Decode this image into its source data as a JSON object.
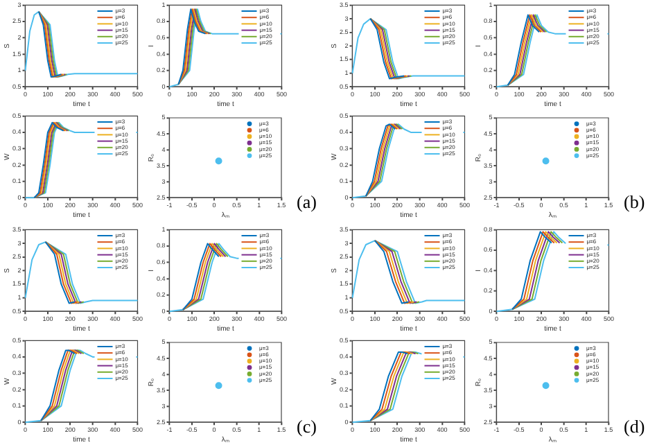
{
  "chart_data": [
    {
      "type": "line",
      "xlabel": "time t",
      "ylabel": "S",
      "xlim": [
        0,
        500
      ],
      "xticks": [
        0,
        100,
        200,
        300,
        400,
        500
      ],
      "ylim": [
        0.5,
        3
      ],
      "yticks": [
        0.5,
        1,
        1.5,
        2,
        2.5,
        3
      ],
      "legend": "top right",
      "series": [
        {
          "name": "μ=3",
          "color": "#0072bd",
          "x": [
            60,
            80,
            100,
            115,
            130,
            160
          ],
          "values": [
            2.8,
            2.4,
            1.3,
            0.8,
            0.82,
            0.88
          ]
        },
        {
          "name": "μ=6",
          "color": "#d95319",
          "x": [
            60,
            86,
            106,
            121,
            136,
            166
          ],
          "values": [
            2.8,
            2.4,
            1.3,
            0.8,
            0.82,
            0.88
          ]
        },
        {
          "name": "μ=10",
          "color": "#edb120",
          "x": [
            60,
            92,
            112,
            127,
            142,
            172
          ],
          "values": [
            2.8,
            2.4,
            1.3,
            0.8,
            0.82,
            0.88
          ]
        },
        {
          "name": "μ=15",
          "color": "#7e2f8e",
          "x": [
            60,
            98,
            118,
            133,
            148,
            178
          ],
          "values": [
            2.8,
            2.4,
            1.3,
            0.8,
            0.82,
            0.88
          ]
        },
        {
          "name": "μ=20",
          "color": "#77ac30",
          "x": [
            60,
            104,
            124,
            139,
            154,
            184
          ],
          "values": [
            2.8,
            2.4,
            1.3,
            0.8,
            0.82,
            0.88
          ]
        },
        {
          "name": "μ=25",
          "color": "#4dbeee",
          "x": [
            0,
            20,
            40,
            60,
            110,
            130,
            145,
            160,
            190,
            220,
            500
          ],
          "values": [
            1,
            2.2,
            2.7,
            2.8,
            2.4,
            1.3,
            0.8,
            0.82,
            0.88,
            0.9,
            0.9
          ]
        }
      ]
    },
    {
      "type": "line",
      "xlabel": "time t",
      "ylabel": "I",
      "xlim": [
        0,
        500
      ],
      "xticks": [
        0,
        100,
        200,
        300,
        400,
        500
      ],
      "ylim": [
        0,
        1
      ],
      "yticks": [
        0,
        0.2,
        0.4,
        0.6,
        0.8,
        1
      ],
      "legend": "top right",
      "series": [
        {
          "name": "μ=3",
          "color": "#0072bd",
          "x": [
            40,
            60,
            80,
            95,
            110,
            130,
            160
          ],
          "values": [
            0.03,
            0.2,
            0.7,
            0.95,
            0.8,
            0.68,
            0.65
          ]
        },
        {
          "name": "μ=6",
          "color": "#d95319",
          "x": [
            40,
            66,
            86,
            101,
            116,
            136,
            166
          ],
          "values": [
            0.03,
            0.2,
            0.7,
            0.95,
            0.8,
            0.68,
            0.65
          ]
        },
        {
          "name": "μ=10",
          "color": "#edb120",
          "x": [
            40,
            72,
            92,
            107,
            122,
            142,
            172
          ],
          "values": [
            0.03,
            0.2,
            0.7,
            0.95,
            0.8,
            0.68,
            0.65
          ]
        },
        {
          "name": "μ=15",
          "color": "#7e2f8e",
          "x": [
            40,
            78,
            98,
            113,
            128,
            148,
            178
          ],
          "values": [
            0.03,
            0.2,
            0.7,
            0.95,
            0.8,
            0.68,
            0.65
          ]
        },
        {
          "name": "μ=20",
          "color": "#77ac30",
          "x": [
            40,
            84,
            104,
            119,
            134,
            154,
            184
          ],
          "values": [
            0.03,
            0.2,
            0.7,
            0.95,
            0.8,
            0.68,
            0.65
          ]
        },
        {
          "name": "μ=25",
          "color": "#4dbeee",
          "x": [
            0,
            40,
            90,
            110,
            125,
            140,
            160,
            190,
            220,
            500
          ],
          "values": [
            0,
            0.03,
            0.2,
            0.7,
            0.95,
            0.8,
            0.68,
            0.65,
            0.65,
            0.65
          ]
        }
      ]
    },
    {
      "type": "line",
      "xlabel": "time t",
      "ylabel": "W",
      "xlim": [
        0,
        500
      ],
      "xticks": [
        0,
        100,
        200,
        300,
        400,
        500
      ],
      "ylim": [
        0,
        0.5
      ],
      "yticks": [
        0,
        0.1,
        0.2,
        0.3,
        0.4,
        0.5
      ],
      "legend": "top right",
      "series": [
        {
          "name": "μ=3",
          "color": "#0072bd",
          "x": [
            40,
            60,
            80,
            100,
            120,
            140,
            170
          ],
          "values": [
            0,
            0.03,
            0.2,
            0.4,
            0.46,
            0.43,
            0.41
          ]
        },
        {
          "name": "μ=6",
          "color": "#d95319",
          "x": [
            40,
            66,
            86,
            106,
            126,
            146,
            176
          ],
          "values": [
            0,
            0.03,
            0.2,
            0.4,
            0.46,
            0.43,
            0.41
          ]
        },
        {
          "name": "μ=10",
          "color": "#edb120",
          "x": [
            40,
            72,
            92,
            112,
            132,
            152,
            182
          ],
          "values": [
            0,
            0.03,
            0.2,
            0.4,
            0.46,
            0.43,
            0.41
          ]
        },
        {
          "name": "μ=15",
          "color": "#7e2f8e",
          "x": [
            40,
            78,
            98,
            118,
            138,
            158,
            188
          ],
          "values": [
            0,
            0.03,
            0.2,
            0.4,
            0.46,
            0.43,
            0.41
          ]
        },
        {
          "name": "μ=20",
          "color": "#77ac30",
          "x": [
            40,
            84,
            104,
            124,
            144,
            164,
            194
          ],
          "values": [
            0,
            0.03,
            0.2,
            0.4,
            0.46,
            0.43,
            0.41
          ]
        },
        {
          "name": "μ=25",
          "color": "#4dbeee",
          "x": [
            0,
            40,
            90,
            110,
            130,
            150,
            170,
            200,
            220,
            500
          ],
          "values": [
            0,
            0,
            0.03,
            0.2,
            0.4,
            0.46,
            0.43,
            0.41,
            0.4,
            0.4
          ]
        }
      ]
    },
    {
      "type": "scatter",
      "xlabel": "λₘ",
      "ylabel": "R₀",
      "xlim": [
        -1,
        1.5
      ],
      "xticks": [
        -1,
        -0.5,
        0,
        0.5,
        1,
        1.5
      ],
      "ylim": [
        2.5,
        5
      ],
      "yticks": [
        2.5,
        3,
        3.5,
        4,
        4.5,
        5
      ],
      "legend": "top right",
      "marker": "circle",
      "annotations": [
        "(a)"
      ],
      "series": [
        {
          "name": "μ=3",
          "color": "#0072bd",
          "x": [
            null
          ],
          "values": [
            null
          ]
        },
        {
          "name": "μ=6",
          "color": "#d95319",
          "x": [
            null
          ],
          "values": [
            null
          ]
        },
        {
          "name": "μ=10",
          "color": "#edb120",
          "x": [
            null
          ],
          "values": [
            null
          ]
        },
        {
          "name": "μ=15",
          "color": "#7e2f8e",
          "x": [
            null
          ],
          "values": [
            null
          ]
        },
        {
          "name": "μ=20",
          "color": "#77ac30",
          "x": [
            null
          ],
          "values": [
            null
          ]
        },
        {
          "name": "μ=25",
          "color": "#4dbeee",
          "x": [
            0.1
          ],
          "values": [
            3.65
          ]
        }
      ]
    },
    {
      "type": "line",
      "xlabel": "time t",
      "ylabel": "S",
      "xlim": [
        0,
        500
      ],
      "xticks": [
        0,
        100,
        200,
        300,
        400,
        500
      ],
      "ylim": [
        0.5,
        3.5
      ],
      "yticks": [
        0.5,
        1,
        1.5,
        2,
        2.5,
        3,
        3.5
      ],
      "legend": "top right",
      "series": [
        {
          "name": "μ=3",
          "color": "#0072bd",
          "x": [
            80,
            110,
            140,
            165,
            190,
            230
          ],
          "values": [
            3,
            2.6,
            1.4,
            0.8,
            0.85,
            0.9
          ]
        },
        {
          "name": "μ=6",
          "color": "#d95319",
          "x": [
            80,
            118,
            148,
            173,
            198,
            238
          ],
          "values": [
            3,
            2.6,
            1.4,
            0.8,
            0.85,
            0.9
          ]
        },
        {
          "name": "μ=10",
          "color": "#edb120",
          "x": [
            80,
            126,
            156,
            181,
            206,
            246
          ],
          "values": [
            3,
            2.6,
            1.4,
            0.8,
            0.85,
            0.9
          ]
        },
        {
          "name": "μ=15",
          "color": "#7e2f8e",
          "x": [
            80,
            134,
            164,
            189,
            214,
            254
          ],
          "values": [
            3,
            2.6,
            1.4,
            0.8,
            0.85,
            0.9
          ]
        },
        {
          "name": "μ=20",
          "color": "#77ac30",
          "x": [
            80,
            142,
            172,
            197,
            222,
            262
          ],
          "values": [
            3,
            2.6,
            1.4,
            0.8,
            0.85,
            0.9
          ]
        },
        {
          "name": "μ=25",
          "color": "#4dbeee",
          "x": [
            0,
            25,
            50,
            80,
            150,
            180,
            205,
            230,
            270,
            300,
            500
          ],
          "values": [
            1,
            2.3,
            2.8,
            3,
            2.6,
            1.4,
            0.8,
            0.85,
            0.9,
            0.9,
            0.9
          ]
        }
      ]
    },
    {
      "type": "line",
      "xlabel": "time t",
      "ylabel": "I",
      "xlim": [
        0,
        500
      ],
      "xticks": [
        0,
        100,
        200,
        300,
        400,
        500
      ],
      "ylim": [
        0,
        1
      ],
      "yticks": [
        0,
        0.2,
        0.4,
        0.6,
        0.8,
        1
      ],
      "legend": "top right",
      "series": [
        {
          "name": "μ=3",
          "color": "#0072bd",
          "x": [
            50,
            80,
            110,
            140,
            160,
            190
          ],
          "values": [
            0.02,
            0.15,
            0.55,
            0.88,
            0.75,
            0.67
          ]
        },
        {
          "name": "μ=6",
          "color": "#d95319",
          "x": [
            50,
            88,
            118,
            148,
            168,
            198
          ],
          "values": [
            0.02,
            0.15,
            0.55,
            0.88,
            0.75,
            0.67
          ]
        },
        {
          "name": "μ=10",
          "color": "#edb120",
          "x": [
            50,
            96,
            126,
            156,
            176,
            206
          ],
          "values": [
            0.02,
            0.15,
            0.55,
            0.88,
            0.75,
            0.67
          ]
        },
        {
          "name": "μ=15",
          "color": "#7e2f8e",
          "x": [
            50,
            104,
            134,
            164,
            184,
            214
          ],
          "values": [
            0.02,
            0.15,
            0.55,
            0.88,
            0.75,
            0.67
          ]
        },
        {
          "name": "μ=20",
          "color": "#77ac30",
          "x": [
            50,
            112,
            142,
            172,
            192,
            222
          ],
          "values": [
            0.02,
            0.15,
            0.55,
            0.88,
            0.75,
            0.67
          ]
        },
        {
          "name": "μ=25",
          "color": "#4dbeee",
          "x": [
            0,
            50,
            120,
            150,
            180,
            200,
            230,
            260,
            500
          ],
          "values": [
            0,
            0.02,
            0.15,
            0.55,
            0.88,
            0.75,
            0.67,
            0.65,
            0.65
          ]
        }
      ]
    },
    {
      "type": "line",
      "xlabel": "time t",
      "ylabel": "W",
      "xlim": [
        0,
        500
      ],
      "xticks": [
        0,
        100,
        200,
        300,
        400,
        500
      ],
      "ylim": [
        0,
        0.5
      ],
      "yticks": [
        0,
        0.1,
        0.2,
        0.3,
        0.4,
        0.5
      ],
      "legend": "top right",
      "series": [
        {
          "name": "μ=3",
          "color": "#0072bd",
          "x": [
            60,
            90,
            120,
            150,
            165,
            190
          ],
          "values": [
            0.01,
            0.1,
            0.3,
            0.44,
            0.45,
            0.42
          ]
        },
        {
          "name": "μ=6",
          "color": "#d95319",
          "x": [
            60,
            98,
            128,
            158,
            173,
            198
          ],
          "values": [
            0.01,
            0.1,
            0.3,
            0.44,
            0.45,
            0.42
          ]
        },
        {
          "name": "μ=10",
          "color": "#edb120",
          "x": [
            60,
            106,
            136,
            166,
            181,
            206
          ],
          "values": [
            0.01,
            0.1,
            0.3,
            0.44,
            0.45,
            0.42
          ]
        },
        {
          "name": "μ=15",
          "color": "#7e2f8e",
          "x": [
            60,
            114,
            144,
            174,
            189,
            214
          ],
          "values": [
            0.01,
            0.1,
            0.3,
            0.44,
            0.45,
            0.42
          ]
        },
        {
          "name": "μ=20",
          "color": "#77ac30",
          "x": [
            60,
            122,
            152,
            182,
            197,
            222
          ],
          "values": [
            0.01,
            0.1,
            0.3,
            0.44,
            0.45,
            0.42
          ]
        },
        {
          "name": "μ=25",
          "color": "#4dbeee",
          "x": [
            0,
            60,
            130,
            160,
            190,
            205,
            230,
            260,
            500
          ],
          "values": [
            0,
            0.01,
            0.1,
            0.3,
            0.44,
            0.45,
            0.42,
            0.4,
            0.4
          ]
        }
      ]
    },
    {
      "type": "scatter",
      "xlabel": "λₘ",
      "ylabel": "R₀",
      "xlim": [
        -1,
        1.5
      ],
      "xticks": [
        -1,
        -0.5,
        0,
        0.5,
        1,
        1.5
      ],
      "ylim": [
        2.5,
        5
      ],
      "yticks": [
        2.5,
        3,
        3.5,
        4,
        4.5,
        5
      ],
      "legend": "top right",
      "marker": "circle",
      "annotations": [
        "(b)"
      ],
      "series": [
        {
          "name": "μ=3",
          "color": "#0072bd",
          "x": [
            null
          ],
          "values": [
            null
          ]
        },
        {
          "name": "μ=6",
          "color": "#d95319",
          "x": [
            null
          ],
          "values": [
            null
          ]
        },
        {
          "name": "μ=10",
          "color": "#edb120",
          "x": [
            null
          ],
          "values": [
            null
          ]
        },
        {
          "name": "μ=15",
          "color": "#7e2f8e",
          "x": [
            null
          ],
          "values": [
            null
          ]
        },
        {
          "name": "μ=20",
          "color": "#77ac30",
          "x": [
            null
          ],
          "values": [
            null
          ]
        },
        {
          "name": "μ=25",
          "color": "#4dbeee",
          "x": [
            0.1
          ],
          "values": [
            3.65
          ]
        }
      ]
    },
    {
      "type": "line",
      "xlabel": "time t",
      "ylabel": "S",
      "xlim": [
        0,
        500
      ],
      "xticks": [
        0,
        100,
        200,
        300,
        400,
        500
      ],
      "ylim": [
        0.5,
        3.5
      ],
      "yticks": [
        0.5,
        1,
        1.5,
        2,
        2.5,
        3,
        3.5
      ],
      "legend": "top right",
      "series": [
        {
          "name": "μ=3",
          "color": "#0072bd",
          "x": [
            90,
            130,
            160,
            195,
            220
          ],
          "values": [
            3.05,
            2.6,
            1.5,
            0.8,
            0.85
          ]
        },
        {
          "name": "μ=6",
          "color": "#d95319",
          "x": [
            90,
            140,
            170,
            205,
            230
          ],
          "values": [
            3.05,
            2.6,
            1.5,
            0.8,
            0.85
          ]
        },
        {
          "name": "μ=10",
          "color": "#edb120",
          "x": [
            90,
            150,
            180,
            215,
            240
          ],
          "values": [
            3.05,
            2.6,
            1.5,
            0.8,
            0.85
          ]
        },
        {
          "name": "μ=15",
          "color": "#7e2f8e",
          "x": [
            90,
            160,
            190,
            225,
            250
          ],
          "values": [
            3.05,
            2.6,
            1.5,
            0.8,
            0.85
          ]
        },
        {
          "name": "μ=20",
          "color": "#77ac30",
          "x": [
            90,
            170,
            200,
            235,
            260
          ],
          "values": [
            3.05,
            2.6,
            1.5,
            0.8,
            0.85
          ]
        },
        {
          "name": "μ=25",
          "color": "#4dbeee",
          "x": [
            0,
            30,
            60,
            90,
            180,
            210,
            245,
            270,
            300,
            500
          ],
          "values": [
            1,
            2.4,
            2.95,
            3.05,
            2.6,
            1.5,
            0.8,
            0.85,
            0.9,
            0.9
          ]
        }
      ]
    },
    {
      "type": "line",
      "xlabel": "time t",
      "ylabel": "I",
      "xlim": [
        0,
        500
      ],
      "xticks": [
        0,
        100,
        200,
        300,
        400,
        500
      ],
      "ylim": [
        0,
        1
      ],
      "yticks": [
        0,
        0.2,
        0.4,
        0.6,
        0.8,
        1
      ],
      "legend": "top right",
      "series": [
        {
          "name": "μ=3",
          "color": "#0072bd",
          "x": [
            60,
            100,
            140,
            170,
            190,
            220
          ],
          "values": [
            0.02,
            0.15,
            0.6,
            0.83,
            0.76,
            0.67
          ]
        },
        {
          "name": "μ=6",
          "color": "#d95319",
          "x": [
            60,
            110,
            150,
            180,
            200,
            230
          ],
          "values": [
            0.02,
            0.15,
            0.6,
            0.83,
            0.76,
            0.67
          ]
        },
        {
          "name": "μ=10",
          "color": "#edb120",
          "x": [
            60,
            120,
            160,
            190,
            210,
            240
          ],
          "values": [
            0.02,
            0.15,
            0.6,
            0.83,
            0.76,
            0.67
          ]
        },
        {
          "name": "μ=15",
          "color": "#7e2f8e",
          "x": [
            60,
            130,
            170,
            200,
            220,
            250
          ],
          "values": [
            0.02,
            0.15,
            0.6,
            0.83,
            0.76,
            0.67
          ]
        },
        {
          "name": "μ=20",
          "color": "#77ac30",
          "x": [
            60,
            140,
            180,
            210,
            230,
            260
          ],
          "values": [
            0.02,
            0.15,
            0.6,
            0.83,
            0.76,
            0.67
          ]
        },
        {
          "name": "μ=25",
          "color": "#4dbeee",
          "x": [
            0,
            60,
            150,
            190,
            220,
            240,
            270,
            300,
            500
          ],
          "values": [
            0,
            0.02,
            0.15,
            0.6,
            0.83,
            0.76,
            0.67,
            0.65,
            0.65
          ]
        }
      ]
    },
    {
      "type": "line",
      "xlabel": "time t",
      "ylabel": "W",
      "xlim": [
        0,
        500
      ],
      "xticks": [
        0,
        100,
        200,
        300,
        400,
        500
      ],
      "ylim": [
        0,
        0.5
      ],
      "yticks": [
        0,
        0.1,
        0.2,
        0.3,
        0.4,
        0.5
      ],
      "legend": "top right",
      "series": [
        {
          "name": "μ=3",
          "color": "#0072bd",
          "x": [
            70,
            110,
            150,
            180,
            195,
            220
          ],
          "values": [
            0.01,
            0.1,
            0.32,
            0.44,
            0.44,
            0.42
          ]
        },
        {
          "name": "μ=6",
          "color": "#d95319",
          "x": [
            70,
            120,
            160,
            190,
            205,
            230
          ],
          "values": [
            0.01,
            0.1,
            0.32,
            0.44,
            0.44,
            0.42
          ]
        },
        {
          "name": "μ=10",
          "color": "#edb120",
          "x": [
            70,
            130,
            170,
            200,
            215,
            240
          ],
          "values": [
            0.01,
            0.1,
            0.32,
            0.44,
            0.44,
            0.42
          ]
        },
        {
          "name": "μ=15",
          "color": "#7e2f8e",
          "x": [
            70,
            140,
            180,
            210,
            225,
            250
          ],
          "values": [
            0.01,
            0.1,
            0.32,
            0.44,
            0.44,
            0.42
          ]
        },
        {
          "name": "μ=20",
          "color": "#77ac30",
          "x": [
            70,
            150,
            190,
            220,
            235,
            260
          ],
          "values": [
            0.01,
            0.1,
            0.32,
            0.44,
            0.44,
            0.42
          ]
        },
        {
          "name": "μ=25",
          "color": "#4dbeee",
          "x": [
            0,
            70,
            160,
            200,
            230,
            245,
            270,
            300,
            500
          ],
          "values": [
            0,
            0.01,
            0.1,
            0.32,
            0.44,
            0.44,
            0.42,
            0.4,
            0.4
          ]
        }
      ]
    },
    {
      "type": "scatter",
      "xlabel": "λₘ",
      "ylabel": "R₀",
      "xlim": [
        -1,
        1.5
      ],
      "xticks": [
        -1,
        -0.5,
        0,
        0.5,
        1,
        1.5
      ],
      "ylim": [
        2.5,
        5
      ],
      "yticks": [
        2.5,
        3,
        3.5,
        4,
        4.5,
        5
      ],
      "legend": "top right",
      "marker": "circle",
      "annotations": [
        "(c)"
      ],
      "series": [
        {
          "name": "μ=3",
          "color": "#0072bd",
          "x": [
            null
          ],
          "values": [
            null
          ]
        },
        {
          "name": "μ=6",
          "color": "#d95319",
          "x": [
            null
          ],
          "values": [
            null
          ]
        },
        {
          "name": "μ=10",
          "color": "#edb120",
          "x": [
            null
          ],
          "values": [
            null
          ]
        },
        {
          "name": "μ=15",
          "color": "#7e2f8e",
          "x": [
            null
          ],
          "values": [
            null
          ]
        },
        {
          "name": "μ=20",
          "color": "#77ac30",
          "x": [
            null
          ],
          "values": [
            null
          ]
        },
        {
          "name": "μ=25",
          "color": "#4dbeee",
          "x": [
            0.1
          ],
          "values": [
            3.65
          ]
        }
      ]
    },
    {
      "type": "line",
      "xlabel": "time t",
      "ylabel": "S",
      "xlim": [
        0,
        500
      ],
      "xticks": [
        0,
        100,
        200,
        300,
        400,
        500
      ],
      "ylim": [
        0.5,
        3.5
      ],
      "yticks": [
        0.5,
        1,
        1.5,
        2,
        2.5,
        3,
        3.5
      ],
      "legend": "top right",
      "series": [
        {
          "name": "μ=3",
          "color": "#0072bd",
          "x": [
            100,
            140,
            180,
            220,
            250
          ],
          "values": [
            3.1,
            2.7,
            1.6,
            0.8,
            0.85
          ]
        },
        {
          "name": "μ=6",
          "color": "#d95319",
          "x": [
            100,
            152,
            192,
            232,
            262
          ],
          "values": [
            3.1,
            2.7,
            1.6,
            0.8,
            0.85
          ]
        },
        {
          "name": "μ=10",
          "color": "#edb120",
          "x": [
            100,
            164,
            204,
            244,
            274
          ],
          "values": [
            3.1,
            2.7,
            1.6,
            0.8,
            0.85
          ]
        },
        {
          "name": "μ=15",
          "color": "#7e2f8e",
          "x": [
            100,
            176,
            216,
            256,
            286
          ],
          "values": [
            3.1,
            2.7,
            1.6,
            0.8,
            0.85
          ]
        },
        {
          "name": "μ=20",
          "color": "#77ac30",
          "x": [
            100,
            188,
            228,
            268,
            298
          ],
          "values": [
            3.1,
            2.7,
            1.6,
            0.8,
            0.85
          ]
        },
        {
          "name": "μ=25",
          "color": "#4dbeee",
          "x": [
            0,
            30,
            60,
            100,
            200,
            240,
            280,
            310,
            330,
            500
          ],
          "values": [
            1,
            2.4,
            2.95,
            3.1,
            2.7,
            1.6,
            0.8,
            0.85,
            0.9,
            0.9
          ]
        }
      ]
    },
    {
      "type": "line",
      "xlabel": "time t",
      "ylabel": "I",
      "xlim": [
        0,
        500
      ],
      "xticks": [
        0,
        100,
        200,
        300,
        400,
        500
      ],
      "ylim": [
        0,
        0.8
      ],
      "yticks": [
        0,
        0.2,
        0.4,
        0.6,
        0.8
      ],
      "legend": "top right",
      "series": [
        {
          "name": "μ=3",
          "color": "#0072bd",
          "x": [
            70,
            110,
            150,
            195,
            215,
            245
          ],
          "values": [
            0.02,
            0.12,
            0.5,
            0.78,
            0.73,
            0.67
          ]
        },
        {
          "name": "μ=6",
          "color": "#d95319",
          "x": [
            70,
            122,
            162,
            207,
            227,
            257
          ],
          "values": [
            0.02,
            0.12,
            0.5,
            0.78,
            0.73,
            0.67
          ]
        },
        {
          "name": "μ=10",
          "color": "#edb120",
          "x": [
            70,
            134,
            174,
            219,
            239,
            269
          ],
          "values": [
            0.02,
            0.12,
            0.5,
            0.78,
            0.73,
            0.67
          ]
        },
        {
          "name": "μ=15",
          "color": "#7e2f8e",
          "x": [
            70,
            146,
            186,
            231,
            251,
            281
          ],
          "values": [
            0.02,
            0.12,
            0.5,
            0.78,
            0.73,
            0.67
          ]
        },
        {
          "name": "μ=20",
          "color": "#77ac30",
          "x": [
            70,
            158,
            198,
            243,
            263,
            293
          ],
          "values": [
            0.02,
            0.12,
            0.5,
            0.78,
            0.73,
            0.67
          ]
        },
        {
          "name": "μ=25",
          "color": "#4dbeee",
          "x": [
            0,
            70,
            170,
            210,
            255,
            275,
            305,
            330,
            500
          ],
          "values": [
            0,
            0.02,
            0.12,
            0.5,
            0.78,
            0.73,
            0.67,
            null,
            0.65
          ]
        }
      ]
    },
    {
      "type": "line",
      "xlabel": "time t",
      "ylabel": "W",
      "xlim": [
        0,
        500
      ],
      "xticks": [
        0,
        100,
        200,
        300,
        400,
        500
      ],
      "ylim": [
        0,
        0.5
      ],
      "yticks": [
        0,
        0.1,
        0.2,
        0.3,
        0.4,
        0.5
      ],
      "legend": "top right",
      "series": [
        {
          "name": "μ=3",
          "color": "#0072bd",
          "x": [
            80,
            120,
            160,
            205,
            220,
            245
          ],
          "values": [
            0.01,
            0.08,
            0.28,
            0.43,
            0.43,
            0.42
          ]
        },
        {
          "name": "μ=6",
          "color": "#d95319",
          "x": [
            80,
            132,
            172,
            217,
            232,
            257
          ],
          "values": [
            0.01,
            0.08,
            0.28,
            0.43,
            0.43,
            0.42
          ]
        },
        {
          "name": "μ=10",
          "color": "#edb120",
          "x": [
            80,
            144,
            184,
            229,
            244,
            269
          ],
          "values": [
            0.01,
            0.08,
            0.28,
            0.43,
            0.43,
            0.42
          ]
        },
        {
          "name": "μ=15",
          "color": "#7e2f8e",
          "x": [
            80,
            156,
            196,
            241,
            256,
            281
          ],
          "values": [
            0.01,
            0.08,
            0.28,
            0.43,
            0.43,
            0.42
          ]
        },
        {
          "name": "μ=20",
          "color": "#77ac30",
          "x": [
            80,
            168,
            208,
            253,
            268,
            293
          ],
          "values": [
            0.01,
            0.08,
            0.28,
            0.43,
            0.43,
            0.42
          ]
        },
        {
          "name": "μ=25",
          "color": "#4dbeee",
          "x": [
            0,
            80,
            180,
            220,
            265,
            280,
            305,
            330,
            500
          ],
          "values": [
            0,
            0.01,
            0.08,
            0.28,
            0.43,
            0.43,
            0.42,
            null,
            0.4
          ]
        }
      ]
    },
    {
      "type": "scatter",
      "xlabel": "λₘ",
      "ylabel": "R₀",
      "xlim": [
        -1,
        1.5
      ],
      "xticks": [
        -1,
        -0.5,
        0,
        0.5,
        1,
        1.5
      ],
      "ylim": [
        2.5,
        5
      ],
      "yticks": [
        2.5,
        3,
        3.5,
        4,
        4.5,
        5
      ],
      "legend": "top right",
      "marker": "circle",
      "annotations": [
        "(d)"
      ],
      "series": [
        {
          "name": "μ=3",
          "color": "#0072bd",
          "x": [
            null
          ],
          "values": [
            null
          ]
        },
        {
          "name": "μ=6",
          "color": "#d95319",
          "x": [
            null
          ],
          "values": [
            null
          ]
        },
        {
          "name": "μ=10",
          "color": "#edb120",
          "x": [
            null
          ],
          "values": [
            null
          ]
        },
        {
          "name": "μ=15",
          "color": "#7e2f8e",
          "x": [
            null
          ],
          "values": [
            null
          ]
        },
        {
          "name": "μ=20",
          "color": "#77ac30",
          "x": [
            null
          ],
          "values": [
            null
          ]
        },
        {
          "name": "μ=25",
          "color": "#4dbeee",
          "x": [
            0.1
          ],
          "values": [
            3.65
          ]
        }
      ]
    }
  ]
}
